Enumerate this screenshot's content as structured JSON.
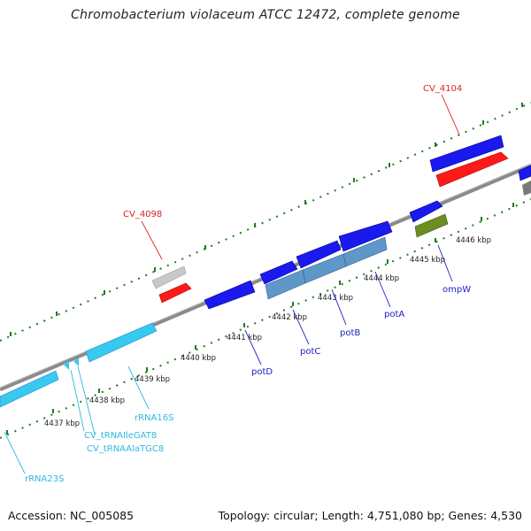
{
  "title": "Chromobacterium violaceum ATCC 12472, complete genome",
  "footer": {
    "accession": "Accession: NC_005085",
    "stats": "Topology: circular; Length: 4,751,080 bp; Genes: 4,530"
  },
  "colors": {
    "backbone": "#8a8a8a",
    "tick_green": "#1f7a1f",
    "gene_blue": "#1a1aee",
    "gene_red": "#ff1a1a",
    "gene_gray": "#c8c8c8",
    "gene_olive": "#6b8e23",
    "gene_steel": "#5f97c9",
    "rna_cyan": "#38c8f0",
    "label_red": "#e02020",
    "label_blue": "#2020c8",
    "label_cyan": "#30b8e0",
    "ruler_text": "#222222"
  },
  "ruler": [
    {
      "id": "4437",
      "label": "4437 kbp"
    },
    {
      "id": "4438",
      "label": "4438 kbp"
    },
    {
      "id": "4439",
      "label": "4439 kbp"
    },
    {
      "id": "4440",
      "label": "4440 kbp"
    },
    {
      "id": "4441",
      "label": "4441 kbp"
    },
    {
      "id": "4442",
      "label": "4442 kbp"
    },
    {
      "id": "4443",
      "label": "4443 kbp"
    },
    {
      "id": "4444",
      "label": "4444 kbp"
    },
    {
      "id": "4445",
      "label": "4445 kbp"
    },
    {
      "id": "4446",
      "label": "4446 kbp"
    }
  ],
  "features": [
    {
      "id": "cv4098",
      "label": "CV_4098"
    },
    {
      "id": "cv4104",
      "label": "CV_4104"
    },
    {
      "id": "potD",
      "label": "potD"
    },
    {
      "id": "potC",
      "label": "potC"
    },
    {
      "id": "potB",
      "label": "potB"
    },
    {
      "id": "potA",
      "label": "potA"
    },
    {
      "id": "ompW",
      "label": "ompW"
    },
    {
      "id": "rRNA16S",
      "label": "rRNA16S"
    },
    {
      "id": "tRNAIle",
      "label": "CV_tRNAIleGAT8"
    },
    {
      "id": "tRNAAla",
      "label": "CV_tRNAAlaTGC8"
    },
    {
      "id": "rRNA23S",
      "label": "rRNA23S"
    }
  ]
}
